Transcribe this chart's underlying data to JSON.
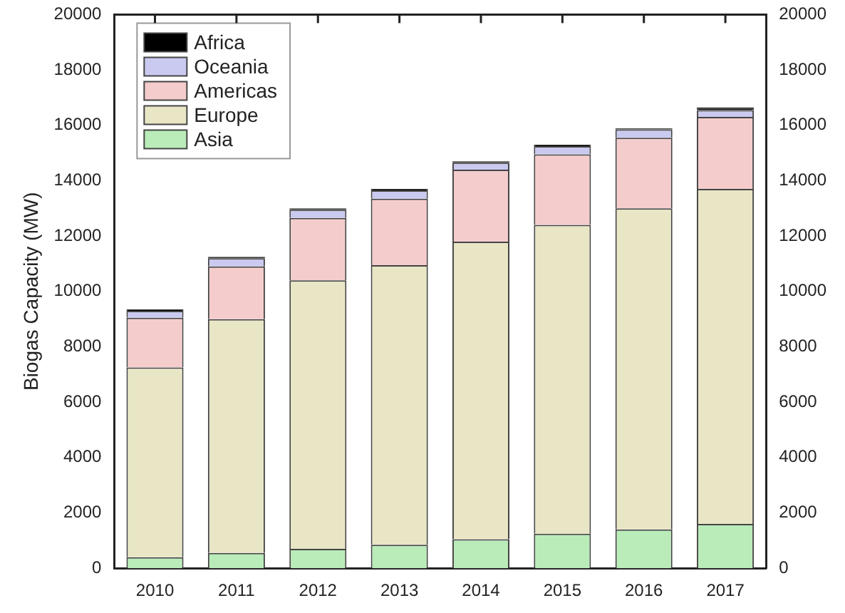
{
  "chart_data": {
    "type": "bar",
    "stacked": true,
    "ylabel": "Biogas Capacity (MW)",
    "categories": [
      "2010",
      "2011",
      "2012",
      "2013",
      "2014",
      "2015",
      "2016",
      "2017"
    ],
    "series": [
      {
        "name": "Asia",
        "color": "#b9ecb9",
        "values": [
          400,
          550,
          700,
          850,
          1050,
          1250,
          1400,
          1600
        ]
      },
      {
        "name": "Europe",
        "color": "#e9e6c6",
        "values": [
          6850,
          8450,
          9700,
          10100,
          10750,
          11150,
          11600,
          12100
        ]
      },
      {
        "name": "Americas",
        "color": "#f5cccc",
        "values": [
          1800,
          1900,
          2250,
          2400,
          2600,
          2550,
          2550,
          2600
        ]
      },
      {
        "name": "Oceania",
        "color": "#cacaf0",
        "values": [
          250,
          300,
          300,
          300,
          250,
          300,
          300,
          250
        ]
      },
      {
        "name": "Africa",
        "color": "#000000",
        "values": [
          50,
          50,
          50,
          50,
          50,
          50,
          50,
          100
        ]
      }
    ],
    "ylim": [
      0,
      20000
    ],
    "yticks": [
      0,
      2000,
      4000,
      6000,
      8000,
      10000,
      12000,
      14000,
      16000,
      18000,
      20000
    ],
    "y2lim": [
      0,
      20000
    ],
    "y2ticks": [
      0,
      2000,
      4000,
      6000,
      8000,
      10000,
      12000,
      14000,
      16000,
      18000,
      20000
    ],
    "legend": "top left",
    "grid": false
  }
}
